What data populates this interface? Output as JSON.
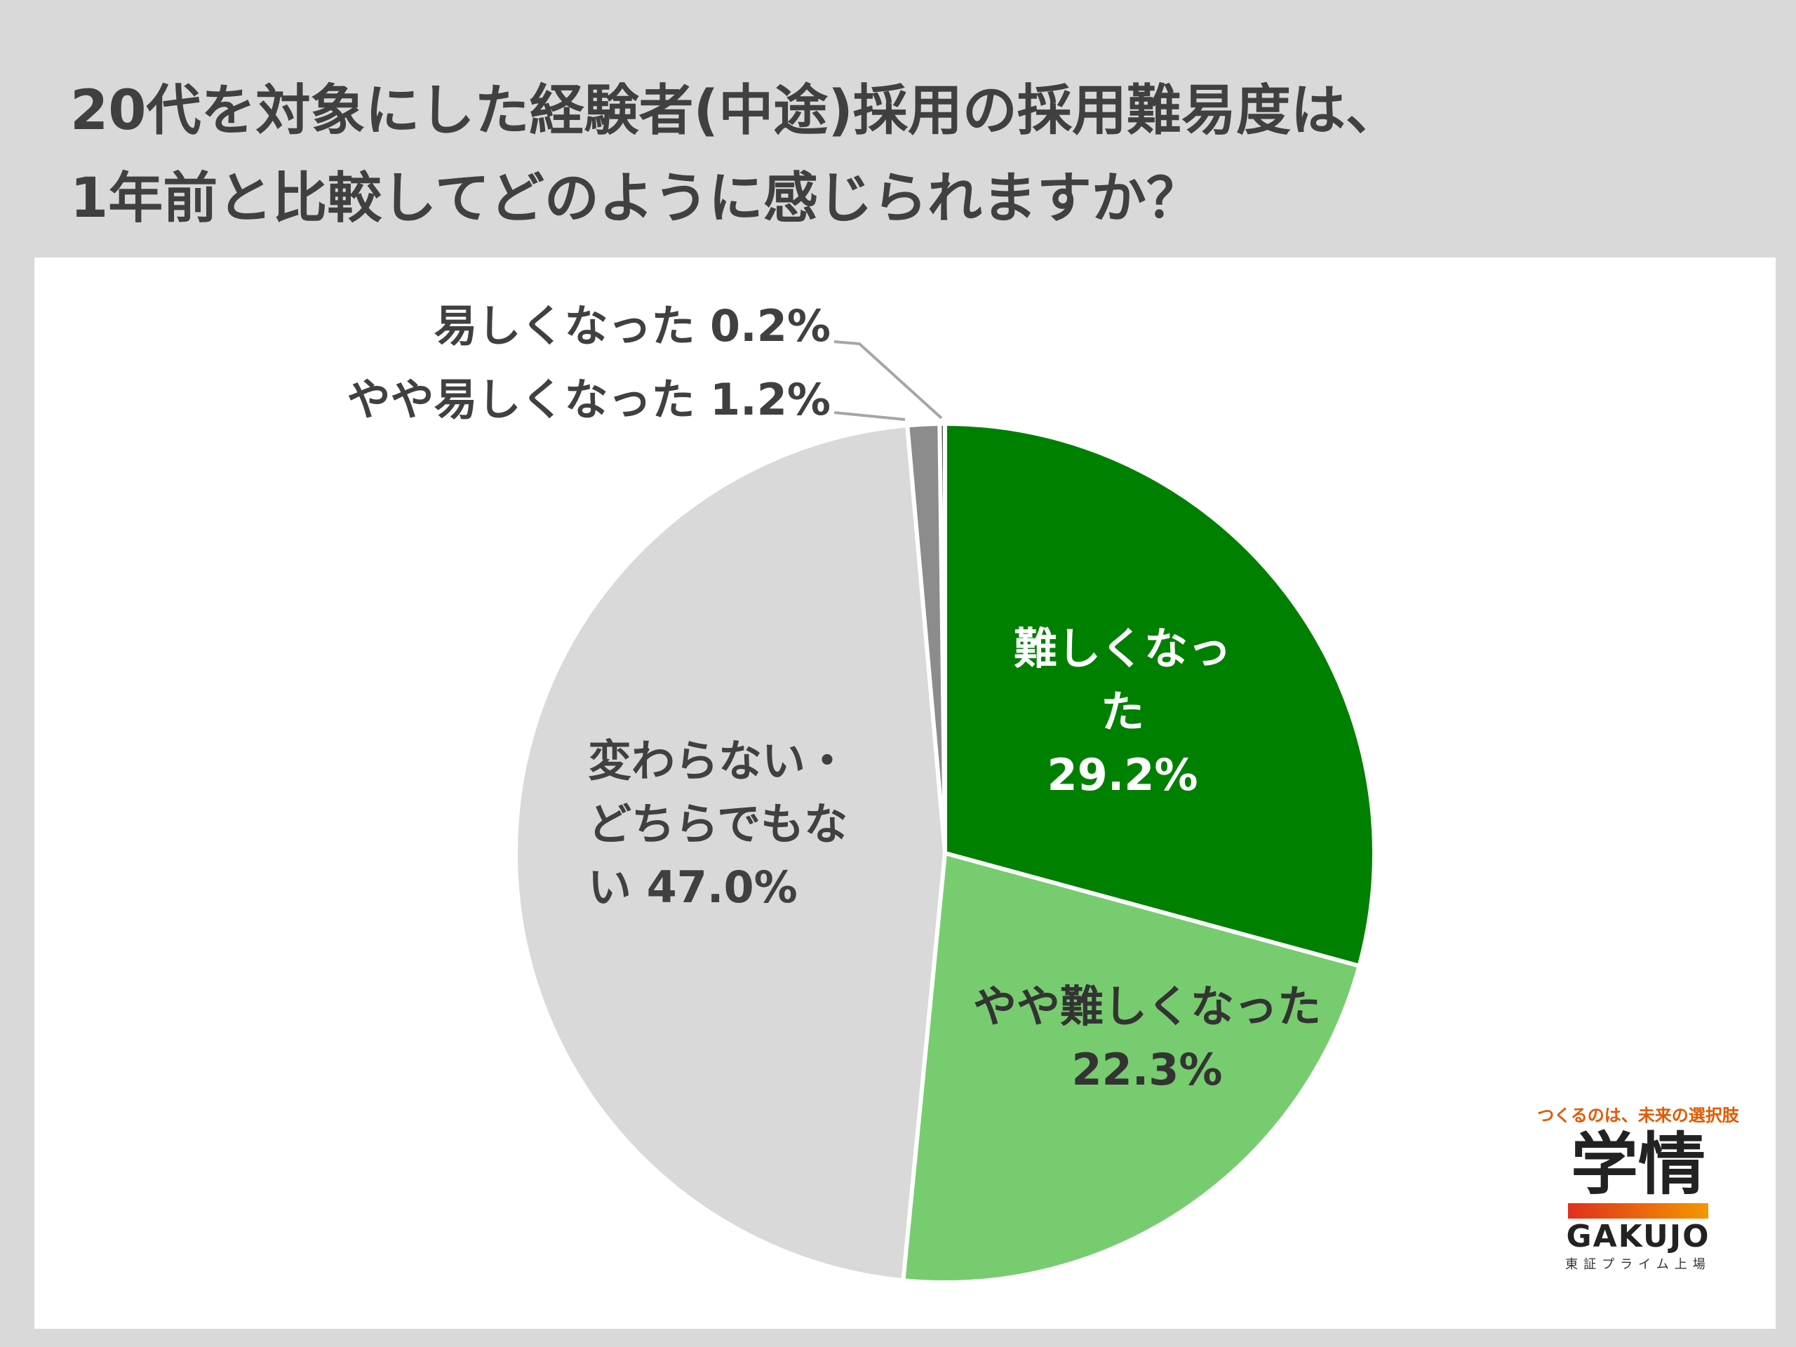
{
  "chart_data": {
    "type": "pie",
    "title": [
      "20代を対象にした経験者(中途)採用の採用難易度は、",
      "1年前と比較してどのように感じられますか？"
    ],
    "categories": [
      "難しくなった",
      "やや難しくなった",
      "変わらない・どちらでもない",
      "やや易しくなった",
      "易しくなった"
    ],
    "values": [
      29.2,
      22.3,
      47.0,
      1.2,
      0.2
    ],
    "value_labels": [
      "29.2%",
      "22.3%",
      "47.0%",
      "1.2%",
      "0.2%"
    ],
    "colors": [
      "#008000",
      "#77cc6f",
      "#d9d9d9",
      "#8c8c8c",
      "#595959"
    ]
  },
  "logo": {
    "tagline": "つくるのは、未来の選択肢",
    "name": "学情",
    "roman": "GAKUJO",
    "listing": "東証プライム上場"
  }
}
